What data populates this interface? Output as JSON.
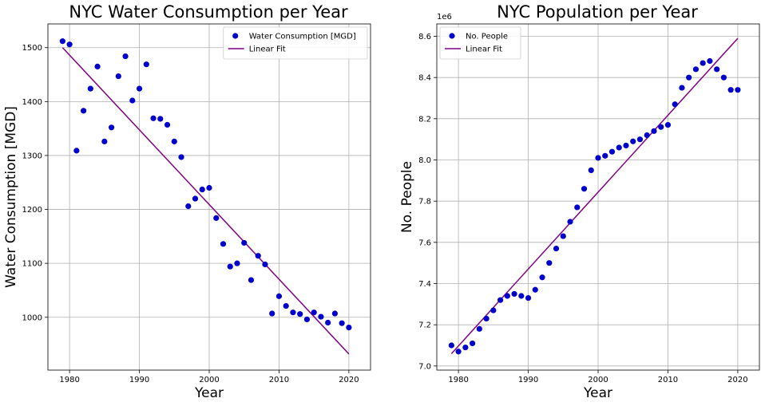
{
  "chart_data": [
    {
      "type": "scatter",
      "title": "NYC Water Consumption per Year",
      "xlabel": "Year",
      "ylabel": "Water Consumption [MGD]",
      "xlim": [
        1976.9,
        2023.1
      ],
      "ylim": [
        902,
        1544
      ],
      "xticks": [
        1980,
        1990,
        2000,
        2010,
        2020
      ],
      "yticks": [
        1000,
        1100,
        1200,
        1300,
        1400,
        1500
      ],
      "grid": true,
      "legend_position": "upper right",
      "series": [
        {
          "name": "Water Consumption [MGD]",
          "kind": "scatter",
          "color": "#0000cd",
          "x": [
            1979,
            1980,
            1981,
            1982,
            1983,
            1984,
            1985,
            1986,
            1987,
            1988,
            1989,
            1990,
            1991,
            1992,
            1993,
            1994,
            1995,
            1996,
            1997,
            1998,
            1999,
            2000,
            2001,
            2002,
            2003,
            2004,
            2005,
            2006,
            2007,
            2008,
            2009,
            2010,
            2011,
            2012,
            2013,
            2014,
            2015,
            2016,
            2017,
            2018,
            2019,
            2020
          ],
          "y": [
            1512,
            1506,
            1309,
            1383,
            1424,
            1465,
            1326,
            1352,
            1447,
            1484,
            1402,
            1424,
            1469,
            1369,
            1368,
            1357,
            1326,
            1297,
            1206,
            1220,
            1237,
            1240,
            1184,
            1136,
            1094,
            1100,
            1138,
            1069,
            1114,
            1098,
            1007,
            1039,
            1021,
            1009,
            1006,
            996,
            1009,
            1001,
            990,
            1007,
            989,
            981
          ]
        },
        {
          "name": "Linear Fit",
          "kind": "line",
          "color": "#800080",
          "x": [
            1979,
            2020
          ],
          "y": [
            1500,
            932
          ]
        }
      ]
    },
    {
      "type": "scatter",
      "title": "NYC Population per Year",
      "xlabel": "Year",
      "ylabel": "No. People",
      "offset_text": "1e6",
      "xlim": [
        1976.9,
        2023.1
      ],
      "ylim": [
        6.98,
        8.66
      ],
      "xticks": [
        1980,
        1990,
        2000,
        2010,
        2020
      ],
      "yticks": [
        7.0,
        7.2,
        7.4,
        7.6,
        7.8,
        8.0,
        8.2,
        8.4,
        8.6
      ],
      "grid": true,
      "legend_position": "upper left",
      "series": [
        {
          "name": "No. People",
          "kind": "scatter",
          "color": "#0000cd",
          "x": [
            1979,
            1980,
            1981,
            1982,
            1983,
            1984,
            1985,
            1986,
            1987,
            1988,
            1989,
            1990,
            1991,
            1992,
            1993,
            1994,
            1995,
            1996,
            1997,
            1998,
            1999,
            2000,
            2001,
            2002,
            2003,
            2004,
            2005,
            2006,
            2007,
            2008,
            2009,
            2010,
            2011,
            2012,
            2013,
            2014,
            2015,
            2016,
            2017,
            2018,
            2019,
            2020
          ],
          "y": [
            7.1,
            7.07,
            7.09,
            7.11,
            7.18,
            7.23,
            7.27,
            7.32,
            7.34,
            7.35,
            7.34,
            7.33,
            7.37,
            7.43,
            7.5,
            7.57,
            7.63,
            7.7,
            7.77,
            7.86,
            7.95,
            8.01,
            8.02,
            8.04,
            8.06,
            8.07,
            8.09,
            8.1,
            8.12,
            8.14,
            8.16,
            8.17,
            8.27,
            8.35,
            8.4,
            8.44,
            8.47,
            8.48,
            8.44,
            8.4,
            8.34,
            8.34
          ]
        },
        {
          "name": "Linear Fit",
          "kind": "line",
          "color": "#800080",
          "x": [
            1979,
            2020
          ],
          "y": [
            7.06,
            8.59
          ]
        }
      ]
    }
  ]
}
